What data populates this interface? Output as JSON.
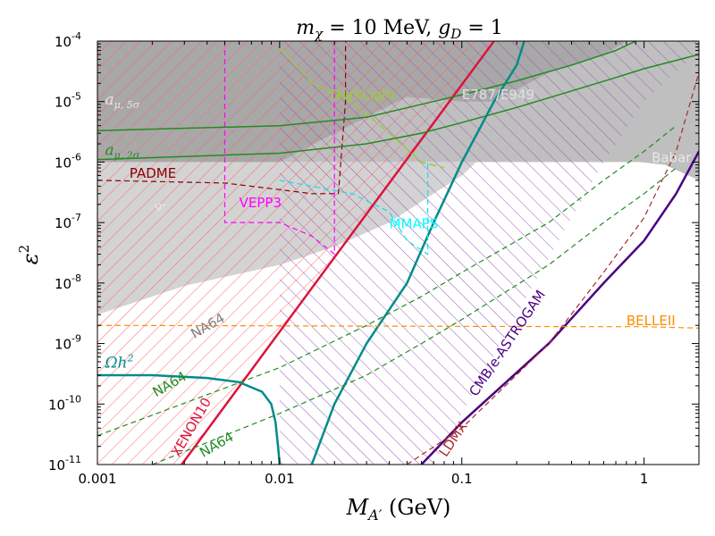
{
  "chart_data": {
    "type": "line",
    "title": "m_χ = 10 MeV, g_D = 1",
    "title_parts": {
      "main": "m",
      "sub": "χ",
      "rest": " = 10 MeV, ",
      "g": "g",
      "gsub": "D",
      "gval": " = 1"
    },
    "xlabel": "M_A′ (GeV)",
    "xlabel_parts": {
      "main": "M",
      "sub": "A′",
      "unit": " (GeV)"
    },
    "ylabel": "ε²",
    "ylabel_parts": {
      "main": "ε",
      "sup": "2"
    },
    "x_scale": "log",
    "y_scale": "log",
    "xlim": [
      0.001,
      2
    ],
    "ylim": [
      1e-11,
      0.0001
    ],
    "x_ticks": [
      {
        "value": 0.001,
        "label": "0.001"
      },
      {
        "value": 0.01,
        "label": "0.01"
      },
      {
        "value": 0.1,
        "label": "0.1"
      },
      {
        "value": 1,
        "label": "1"
      }
    ],
    "y_ticks": [
      {
        "value": 1e-11,
        "base": "10",
        "exp": "-11"
      },
      {
        "value": 1e-10,
        "base": "10",
        "exp": "-10"
      },
      {
        "value": 1e-09,
        "base": "10",
        "exp": "-9"
      },
      {
        "value": 1e-08,
        "base": "10",
        "exp": "-8"
      },
      {
        "value": 1e-07,
        "base": "10",
        "exp": "-7"
      },
      {
        "value": 1e-06,
        "base": "10",
        "exp": "-6"
      },
      {
        "value": 1e-05,
        "base": "10",
        "exp": "-5"
      },
      {
        "value": 0.0001,
        "base": "10",
        "exp": "-4"
      }
    ],
    "regions": [
      {
        "name": "Babar",
        "color": "#bfbfbf",
        "points": [
          [
            0.001,
            1e-06
          ],
          [
            0.95,
            1e-06
          ],
          [
            1.3,
            9e-07
          ],
          [
            2,
            5e-07
          ],
          [
            2,
            0.0001
          ],
          [
            0.001,
            0.0001
          ]
        ]
      },
      {
        "name": "nu-cal",
        "color": "#a8a8a8",
        "points": [
          [
            0.001,
            5e-08
          ],
          [
            0.003,
            1.5e-07
          ],
          [
            0.006,
            5e-07
          ],
          [
            0.01,
            1e-06
          ],
          [
            0.02,
            3e-06
          ],
          [
            0.05,
            1.2e-05
          ],
          [
            0.1,
            1e-05
          ],
          [
            0.15,
            1e-05
          ],
          [
            0.3,
            3e-05
          ],
          [
            0.6,
            6e-05
          ],
          [
            0.8,
            0.0001
          ],
          [
            0.001,
            0.0001
          ]
        ]
      },
      {
        "name": "NA64 region",
        "color": "#d3d3d3",
        "points": [
          [
            0.001,
            3e-09
          ],
          [
            0.003,
            9e-09
          ],
          [
            0.01,
            2e-08
          ],
          [
            0.02,
            4e-08
          ],
          [
            0.04,
            1e-07
          ],
          [
            0.07,
            3e-07
          ],
          [
            0.1,
            6e-07
          ],
          [
            0.12,
            1e-06
          ],
          [
            0.001,
            1e-06
          ]
        ]
      }
    ],
    "hatch_regions": [
      {
        "name": "XENON10",
        "color": "#ff6666",
        "angle": 45,
        "points": [
          [
            0.001,
            1e-11
          ],
          [
            0.0029,
            1e-11
          ],
          [
            0.15,
            0.0001
          ],
          [
            0.001,
            0.0001
          ]
        ]
      },
      {
        "name": "E787/E949",
        "color": "#9b59b6",
        "angle": -45,
        "points": [
          [
            0.01,
            1e-11
          ],
          [
            0.07,
            1e-11
          ],
          [
            0.25,
            1e-08
          ],
          [
            0.6,
            1e-06
          ],
          [
            1,
            1e-05
          ],
          [
            2,
            7e-05
          ],
          [
            2,
            0.0001
          ],
          [
            0.01,
            0.0001
          ]
        ]
      }
    ],
    "series": [
      {
        "name": "XENON10",
        "color": "#dc143c",
        "width": 2.5,
        "dash": "",
        "points": [
          [
            0.0029,
            1e-11
          ],
          [
            0.15,
            0.0001
          ]
        ]
      },
      {
        "name": "Ωh²",
        "color": "#008b8b",
        "width": 2.5,
        "dash": "",
        "points": [
          [
            0.001,
            3e-10
          ],
          [
            0.002,
            3e-10
          ],
          [
            0.004,
            2.7e-10
          ],
          [
            0.006,
            2.3e-10
          ],
          [
            0.008,
            1.6e-10
          ],
          [
            0.009,
            1e-10
          ],
          [
            0.0095,
            5e-11
          ],
          [
            0.0098,
            2e-11
          ],
          [
            0.01,
            1e-11
          ]
        ]
      },
      {
        "name": "Ωh² upper",
        "color": "#008b8b",
        "width": 2.5,
        "dash": "",
        "points": [
          [
            0.015,
            1e-11
          ],
          [
            0.02,
            1e-10
          ],
          [
            0.03,
            1e-09
          ],
          [
            0.05,
            1e-08
          ],
          [
            0.07,
            1e-07
          ],
          [
            0.1,
            1e-06
          ],
          [
            0.15,
            1e-05
          ],
          [
            0.2,
            4e-05
          ],
          [
            0.22,
            0.0001
          ]
        ]
      },
      {
        "name": "CMB/e-ASTROGAM",
        "color": "#4b0082",
        "width": 2.5,
        "dash": "",
        "points": [
          [
            0.06,
            1e-11
          ],
          [
            0.1,
            5e-11
          ],
          [
            0.3,
            1e-09
          ],
          [
            0.6,
            1e-08
          ],
          [
            1,
            5e-08
          ],
          [
            1.5,
            3e-07
          ],
          [
            2,
            1.5e-06
          ]
        ]
      },
      {
        "name": "LDMX",
        "color": "#a52a2a",
        "width": 1.2,
        "dash": "6,4",
        "points": [
          [
            0.05,
            1e-11
          ],
          [
            0.1,
            4e-11
          ],
          [
            0.3,
            1e-09
          ],
          [
            0.6,
            1.5e-08
          ],
          [
            1,
            1.2e-07
          ],
          [
            1.5,
            1.5e-06
          ],
          [
            2,
            3e-05
          ]
        ]
      },
      {
        "name": "BELLEII",
        "color": "#ff8c00",
        "width": 1.2,
        "dash": "6,4",
        "points": [
          [
            0.001,
            2e-09
          ],
          [
            0.5,
            1.9e-09
          ],
          [
            1,
            1.9e-09
          ],
          [
            2,
            1.8e-09
          ]
        ]
      },
      {
        "name": "PADME",
        "color": "#8b0000",
        "width": 1.2,
        "dash": "6,4",
        "points": [
          [
            0.001,
            5e-07
          ],
          [
            0.005,
            4.5e-07
          ],
          [
            0.01,
            3.5e-07
          ],
          [
            0.015,
            3e-07
          ],
          [
            0.021,
            3e-07
          ],
          [
            0.023,
            1e-05
          ],
          [
            0.023,
            0.0001
          ]
        ]
      },
      {
        "name": "VEPP3",
        "color": "#ff00ff",
        "width": 1.2,
        "dash": "6,4",
        "points": [
          [
            0.005,
            0.0001
          ],
          [
            0.005,
            1e-07
          ],
          [
            0.01,
            1e-07
          ],
          [
            0.015,
            6e-08
          ],
          [
            0.02,
            3e-08
          ],
          [
            0.02,
            0.0001
          ]
        ]
      },
      {
        "name": "MMAPS",
        "color": "#00e5ee",
        "width": 1.2,
        "dash": "6,4",
        "points": [
          [
            0.01,
            5e-07
          ],
          [
            0.025,
            3e-07
          ],
          [
            0.04,
            1.5e-07
          ],
          [
            0.05,
            5e-08
          ],
          [
            0.065,
            3e-08
          ],
          [
            0.065,
            1e-06
          ]
        ]
      },
      {
        "name": "DarkLight",
        "color": "#9acd32",
        "width": 1.5,
        "dash": "8,4",
        "points": [
          [
            0.01,
            8e-05
          ],
          [
            0.015,
            2e-05
          ],
          [
            0.025,
            1e-05
          ],
          [
            0.04,
            3e-06
          ],
          [
            0.06,
            1e-06
          ],
          [
            0.08,
            8e-07
          ]
        ]
      },
      {
        "name": "a_mu 5sigma",
        "color": "#228b22",
        "width": 1.5,
        "dash": "",
        "points": [
          [
            0.001,
            3.3e-06
          ],
          [
            0.01,
            4e-06
          ],
          [
            0.03,
            5.5e-06
          ],
          [
            0.06,
            9e-06
          ],
          [
            0.1,
            1.3e-05
          ],
          [
            0.2,
            2.2e-05
          ],
          [
            0.4,
            4e-05
          ],
          [
            0.7,
            7e-05
          ],
          [
            0.9,
            0.0001
          ]
        ]
      },
      {
        "name": "a_mu 2sigma",
        "color": "#228b22",
        "width": 1.5,
        "dash": "",
        "points": [
          [
            0.001,
            1.1e-06
          ],
          [
            0.01,
            1.4e-06
          ],
          [
            0.03,
            2e-06
          ],
          [
            0.06,
            3e-06
          ],
          [
            0.1,
            4.5e-06
          ],
          [
            0.2,
            8e-06
          ],
          [
            0.4,
            1.5e-05
          ],
          [
            0.7,
            2.5e-05
          ],
          [
            1,
            3.5e-05
          ],
          [
            2,
            6e-05
          ]
        ]
      },
      {
        "name": "NA64 a",
        "color": "#228b22",
        "width": 1.2,
        "dash": "6,4",
        "points": [
          [
            0.001,
            3e-11
          ],
          [
            0.01,
            4e-10
          ],
          [
            0.03,
            2e-09
          ],
          [
            0.06,
            6e-09
          ],
          [
            0.1,
            1.5e-08
          ],
          [
            0.3,
            1e-07
          ],
          [
            0.6,
            5e-07
          ],
          [
            1,
            1.5e-06
          ],
          [
            1.5,
            4e-06
          ]
        ]
      },
      {
        "name": "NA64 b",
        "color": "#228b22",
        "width": 1.2,
        "dash": "6,4",
        "points": [
          [
            0.002,
            1e-11
          ],
          [
            0.01,
            7e-11
          ],
          [
            0.03,
            3e-10
          ],
          [
            0.06,
            1e-09
          ],
          [
            0.1,
            2.5e-09
          ],
          [
            0.3,
            2e-08
          ],
          [
            0.6,
            1e-07
          ],
          [
            1,
            3e-07
          ],
          [
            1.5,
            8e-07
          ]
        ]
      }
    ],
    "labels": [
      {
        "text": "DarkLight",
        "x": 0.019,
        "y": 1.1e-05,
        "color": "#9acd32",
        "rotate": 0,
        "kind": "plain"
      },
      {
        "text": "E787/E949",
        "x": 0.1,
        "y": 1.1e-05,
        "color": "#e0e0e0",
        "rotate": 0,
        "kind": "plain"
      },
      {
        "text": "PADME",
        "x": 0.0015,
        "y": 5.5e-07,
        "color": "#8b0000",
        "rotate": 0,
        "kind": "plain"
      },
      {
        "text": "VEPP3",
        "x": 0.006,
        "y": 1.8e-07,
        "color": "#ff00ff",
        "rotate": 0,
        "kind": "plain"
      },
      {
        "text": "MMAPS",
        "x": 0.04,
        "y": 8e-08,
        "color": "#00ffff",
        "rotate": 0,
        "kind": "plain"
      },
      {
        "text": "Babar",
        "x": 1.1,
        "y": 1e-06,
        "color": "#e8e8e8",
        "rotate": 0,
        "kind": "plain"
      },
      {
        "text": "BELLEII",
        "x": 0.8,
        "y": 2e-09,
        "color": "#ff8c00",
        "rotate": 0,
        "kind": "plain"
      },
      {
        "text": "NA64",
        "x": 0.0034,
        "y": 1.2e-09,
        "color": "#808080",
        "rotate": -30,
        "kind": "plain"
      },
      {
        "text": "NA64",
        "x": 0.0021,
        "y": 1.3e-10,
        "color": "#228b22",
        "rotate": -30,
        "kind": "plain"
      },
      {
        "text": "NA64",
        "x": 0.0038,
        "y": 1.3e-11,
        "color": "#228b22",
        "rotate": -30,
        "kind": "plain"
      },
      {
        "text": "XENON10",
        "x": 0.0028,
        "y": 1.3e-11,
        "color": "#dc143c",
        "rotate": -60,
        "kind": "plain"
      },
      {
        "text": "CMB/e-ASTROGAM",
        "x": 0.12,
        "y": 1.3e-10,
        "color": "#4b0082",
        "rotate": -56,
        "kind": "plain"
      },
      {
        "text": "LDMX",
        "x": 0.082,
        "y": 1.3e-11,
        "color": "#a52a2a",
        "rotate": -56,
        "kind": "plain"
      },
      {
        "text": "ν-",
        "x": 0.0021,
        "y": 1.5e-07,
        "color": "#e8e8e8",
        "rotate": -20,
        "kind": "plain"
      },
      {
        "text": "Ωh",
        "sup": "2",
        "x": 0.0011,
        "y": 4e-10,
        "color": "#008b8b",
        "rotate": 0,
        "kind": "math"
      },
      {
        "text": "a",
        "sub": "μ, 5σ",
        "x": 0.0011,
        "y": 9e-06,
        "color": "#e8e8e8",
        "rotate": 0,
        "kind": "math"
      },
      {
        "text": "a",
        "sub": "μ, 2σ",
        "x": 0.0011,
        "y": 1.3e-06,
        "color": "#228b22",
        "rotate": 0,
        "kind": "math"
      }
    ]
  }
}
